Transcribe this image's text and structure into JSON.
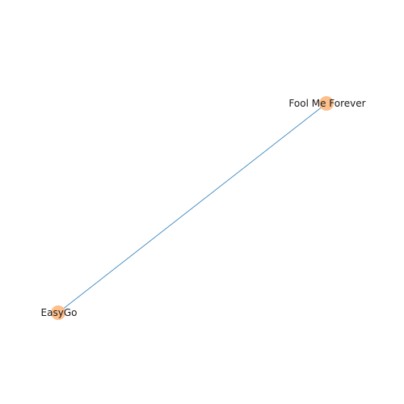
{
  "graph": {
    "nodes": [
      {
        "id": "fool-me-forever",
        "label": "Fool Me Forever"
      },
      {
        "id": "easygo",
        "label": "EasyGo"
      }
    ],
    "edges": [
      {
        "source": "fool-me-forever",
        "target": "easygo"
      }
    ],
    "colors": {
      "node_fill": "#fdbf8c",
      "edge_stroke": "#3a86c0",
      "label_text": "#1a1a1a"
    }
  }
}
